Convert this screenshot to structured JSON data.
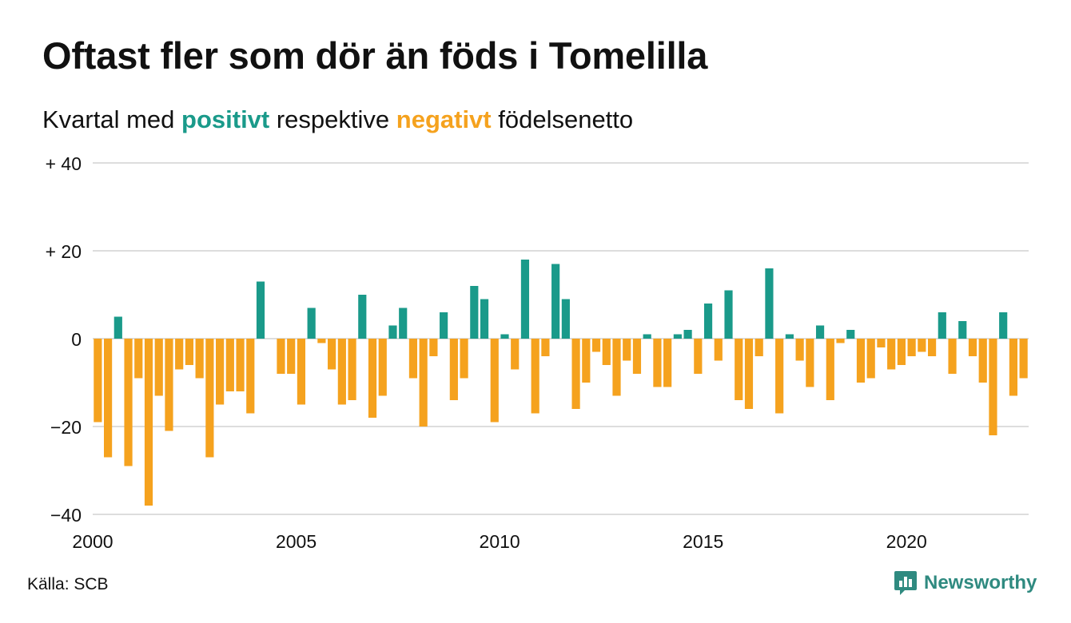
{
  "header": {
    "title": "Oftast fler som dör än föds i Tomelilla",
    "subtitle_pre": "Kvartal med ",
    "subtitle_pos": "positivt",
    "subtitle_mid": " respektive ",
    "subtitle_neg": "negativt",
    "subtitle_post": " födelsenetto"
  },
  "footer": {
    "source": "Källa: SCB",
    "brand": "Newsworthy",
    "brand_icon": "bar-chart-logo-icon"
  },
  "colors": {
    "positive": "#1a9a8a",
    "negative": "#f5a21e",
    "grid": "#dddddd",
    "brand": "#2f8a80"
  },
  "chart_data": {
    "type": "bar",
    "x_start": 2000,
    "x_end": 2023,
    "quarters_per_year": 4,
    "x_ticks": [
      2000,
      2005,
      2010,
      2015,
      2020
    ],
    "x_tick_labels": [
      "2000",
      "2005",
      "2010",
      "2015",
      "2020"
    ],
    "ylim": [
      -40,
      40
    ],
    "y_ticks": [
      40,
      20,
      0,
      -20,
      -40
    ],
    "y_tick_labels": [
      "+ 40",
      "+ 20",
      "0",
      "−20",
      "−40"
    ],
    "grid": true,
    "values": [
      -19,
      -27,
      5,
      -29,
      -9,
      -38,
      -13,
      -21,
      -7,
      -6,
      -9,
      -27,
      -15,
      -12,
      -12,
      -17,
      13,
      0,
      -8,
      -8,
      -15,
      7,
      -1,
      -7,
      -15,
      -14,
      10,
      -18,
      -13,
      3,
      7,
      -9,
      -20,
      -4,
      6,
      -14,
      -9,
      12,
      9,
      -19,
      1,
      -7,
      18,
      -17,
      -4,
      17,
      9,
      -16,
      -10,
      -3,
      -6,
      -13,
      -5,
      -8,
      1,
      -11,
      -11,
      1,
      2,
      -8,
      8,
      -5,
      11,
      -14,
      -16,
      -4,
      16,
      -17,
      1,
      -5,
      -11,
      3,
      -14,
      -1,
      2,
      -10,
      -9,
      -2,
      -7,
      -6,
      -4,
      -3,
      -4,
      6,
      -8,
      4,
      -4,
      -10,
      -22,
      6,
      -13,
      -9
    ]
  }
}
